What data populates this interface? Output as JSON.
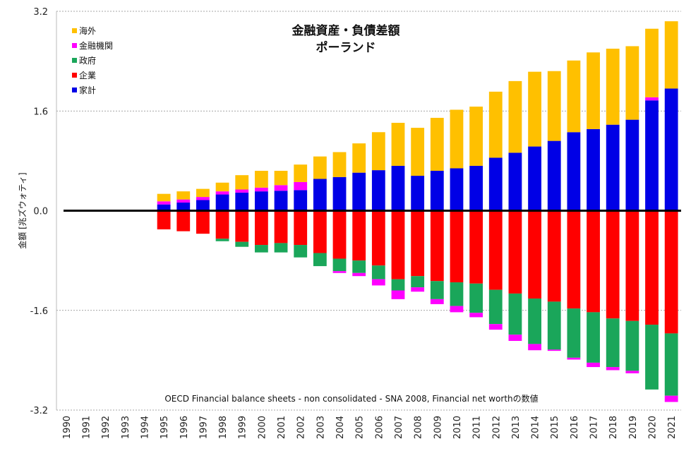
{
  "chart_data": {
    "type": "bar",
    "stacked": true,
    "title": "金融資産・負債差額",
    "subtitle": "ポーランド",
    "ylabel": "金額 [兆ズウォティ]",
    "xlabel": "",
    "ylim": [
      -3.2,
      3.2
    ],
    "yticks": [
      3.2,
      1.6,
      0.0,
      -1.6,
      -3.2
    ],
    "ytick_labels": [
      "3.2",
      "1.6",
      "0.0",
      "-1.6",
      "-3.2"
    ],
    "grid": true,
    "legend_position": "top-left",
    "note": "OECD Financial balance sheets - non consolidated - SNA 2008, Financial net worthの数値",
    "categories": [
      "1990",
      "1991",
      "1992",
      "1993",
      "1994",
      "1995",
      "1996",
      "1997",
      "1998",
      "1999",
      "2000",
      "2001",
      "2002",
      "2003",
      "2004",
      "2005",
      "2006",
      "2007",
      "2008",
      "2009",
      "2010",
      "2011",
      "2012",
      "2013",
      "2014",
      "2015",
      "2016",
      "2017",
      "2018",
      "2019",
      "2020",
      "2021"
    ],
    "series": [
      {
        "name": "家計",
        "color": "#0000e6",
        "values": [
          null,
          null,
          null,
          null,
          null,
          0.1,
          0.13,
          0.17,
          0.26,
          0.29,
          0.31,
          0.32,
          0.33,
          0.51,
          0.54,
          0.61,
          0.65,
          0.72,
          0.56,
          0.64,
          0.68,
          0.72,
          0.85,
          0.93,
          1.03,
          1.12,
          1.26,
          1.31,
          1.38,
          1.46,
          1.77,
          1.96
        ]
      },
      {
        "name": "企業",
        "color": "#ff0000",
        "values": [
          null,
          null,
          null,
          null,
          null,
          -0.3,
          -0.33,
          -0.37,
          -0.45,
          -0.5,
          -0.55,
          -0.52,
          -0.55,
          -0.68,
          -0.77,
          -0.8,
          -0.88,
          -1.1,
          -1.05,
          -1.13,
          -1.15,
          -1.17,
          -1.27,
          -1.33,
          -1.41,
          -1.46,
          -1.57,
          -1.63,
          -1.73,
          -1.77,
          -1.83,
          -1.97
        ]
      },
      {
        "name": "政府",
        "color": "#1aa65a",
        "values": [
          null,
          null,
          null,
          null,
          null,
          0,
          0,
          0,
          -0.04,
          -0.08,
          -0.12,
          -0.15,
          -0.2,
          -0.21,
          -0.2,
          -0.2,
          -0.22,
          -0.18,
          -0.18,
          -0.29,
          -0.38,
          -0.47,
          -0.55,
          -0.66,
          -0.73,
          -0.77,
          -0.79,
          -0.81,
          -0.78,
          -0.8,
          -1.04,
          -1.0
        ]
      },
      {
        "name": "金融機関",
        "color": "#ff00ff",
        "values": [
          null,
          null,
          null,
          null,
          null,
          0.05,
          0.05,
          0.05,
          0.05,
          0.05,
          0.06,
          0.09,
          0.13,
          0,
          -0.03,
          -0.05,
          -0.1,
          -0.14,
          -0.07,
          -0.08,
          -0.1,
          -0.07,
          -0.09,
          -0.1,
          -0.1,
          -0.02,
          -0.03,
          -0.07,
          -0.05,
          -0.04,
          0.05,
          -0.1
        ]
      },
      {
        "name": "海外",
        "color": "#ffc000",
        "values": [
          null,
          null,
          null,
          null,
          null,
          0.12,
          0.13,
          0.13,
          0.14,
          0.23,
          0.27,
          0.23,
          0.28,
          0.36,
          0.4,
          0.47,
          0.61,
          0.69,
          0.77,
          0.85,
          0.94,
          0.95,
          1.06,
          1.15,
          1.2,
          1.12,
          1.15,
          1.23,
          1.22,
          1.18,
          1.1,
          1.08
        ]
      }
    ],
    "legend_order": [
      "海外",
      "金融機関",
      "政府",
      "企業",
      "家計"
    ]
  }
}
